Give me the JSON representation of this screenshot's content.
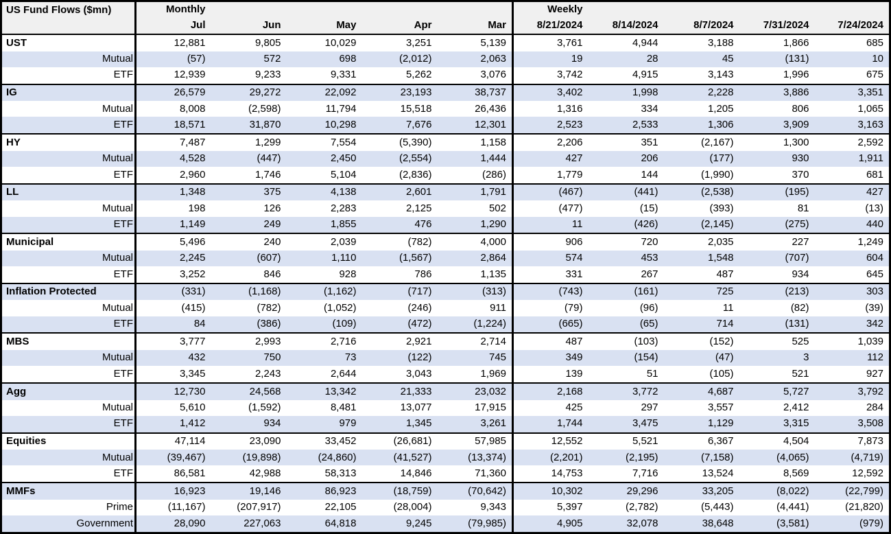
{
  "colors": {
    "stripe_row_bg": "#d9e1f2",
    "header_bg": "#f0f0f0",
    "border": "#000000",
    "text": "#000000",
    "row_bg": "#ffffff"
  },
  "chart_data": {
    "type": "table",
    "title": "US Fund Flows ($mn)",
    "header": {
      "monthly_label": "Monthly",
      "weekly_label": "Weekly",
      "monthly_columns": [
        "Jul",
        "Jun",
        "May",
        "Apr",
        "Mar"
      ],
      "weekly_columns": [
        "8/21/2024",
        "8/14/2024",
        "8/7/2024",
        "7/31/2024",
        "7/24/2024"
      ]
    },
    "groups": [
      {
        "rows": [
          {
            "label": "UST",
            "is_group_header": true,
            "monthly": [
              "12,881",
              "9,805",
              "10,029",
              "3,251",
              "5,139"
            ],
            "weekly": [
              "3,761",
              "4,944",
              "3,188",
              "1,866",
              "685"
            ]
          },
          {
            "label": "Mutual",
            "is_group_header": false,
            "monthly": [
              "(57)",
              "572",
              "698",
              "(2,012)",
              "2,063"
            ],
            "weekly": [
              "19",
              "28",
              "45",
              "(131)",
              "10"
            ]
          },
          {
            "label": "ETF",
            "is_group_header": false,
            "monthly": [
              "12,939",
              "9,233",
              "9,331",
              "5,262",
              "3,076"
            ],
            "weekly": [
              "3,742",
              "4,915",
              "3,143",
              "1,996",
              "675"
            ]
          }
        ]
      },
      {
        "rows": [
          {
            "label": "IG",
            "is_group_header": true,
            "monthly": [
              "26,579",
              "29,272",
              "22,092",
              "23,193",
              "38,737"
            ],
            "weekly": [
              "3,402",
              "1,998",
              "2,228",
              "3,886",
              "3,351"
            ]
          },
          {
            "label": "Mutual",
            "is_group_header": false,
            "monthly": [
              "8,008",
              "(2,598)",
              "11,794",
              "15,518",
              "26,436"
            ],
            "weekly": [
              "1,316",
              "334",
              "1,205",
              "806",
              "1,065"
            ]
          },
          {
            "label": "ETF",
            "is_group_header": false,
            "monthly": [
              "18,571",
              "31,870",
              "10,298",
              "7,676",
              "12,301"
            ],
            "weekly": [
              "2,523",
              "2,533",
              "1,306",
              "3,909",
              "3,163"
            ]
          }
        ]
      },
      {
        "rows": [
          {
            "label": "HY",
            "is_group_header": true,
            "monthly": [
              "7,487",
              "1,299",
              "7,554",
              "(5,390)",
              "1,158"
            ],
            "weekly": [
              "2,206",
              "351",
              "(2,167)",
              "1,300",
              "2,592"
            ]
          },
          {
            "label": "Mutual",
            "is_group_header": false,
            "monthly": [
              "4,528",
              "(447)",
              "2,450",
              "(2,554)",
              "1,444"
            ],
            "weekly": [
              "427",
              "206",
              "(177)",
              "930",
              "1,911"
            ]
          },
          {
            "label": "ETF",
            "is_group_header": false,
            "monthly": [
              "2,960",
              "1,746",
              "5,104",
              "(2,836)",
              "(286)"
            ],
            "weekly": [
              "1,779",
              "144",
              "(1,990)",
              "370",
              "681"
            ]
          }
        ]
      },
      {
        "rows": [
          {
            "label": "LL",
            "is_group_header": true,
            "monthly": [
              "1,348",
              "375",
              "4,138",
              "2,601",
              "1,791"
            ],
            "weekly": [
              "(467)",
              "(441)",
              "(2,538)",
              "(195)",
              "427"
            ]
          },
          {
            "label": "Mutual",
            "is_group_header": false,
            "monthly": [
              "198",
              "126",
              "2,283",
              "2,125",
              "502"
            ],
            "weekly": [
              "(477)",
              "(15)",
              "(393)",
              "81",
              "(13)"
            ]
          },
          {
            "label": "ETF",
            "is_group_header": false,
            "monthly": [
              "1,149",
              "249",
              "1,855",
              "476",
              "1,290"
            ],
            "weekly": [
              "11",
              "(426)",
              "(2,145)",
              "(275)",
              "440"
            ]
          }
        ]
      },
      {
        "rows": [
          {
            "label": "Municipal",
            "is_group_header": true,
            "monthly": [
              "5,496",
              "240",
              "2,039",
              "(782)",
              "4,000"
            ],
            "weekly": [
              "906",
              "720",
              "2,035",
              "227",
              "1,249"
            ]
          },
          {
            "label": "Mutual",
            "is_group_header": false,
            "monthly": [
              "2,245",
              "(607)",
              "1,110",
              "(1,567)",
              "2,864"
            ],
            "weekly": [
              "574",
              "453",
              "1,548",
              "(707)",
              "604"
            ]
          },
          {
            "label": "ETF",
            "is_group_header": false,
            "monthly": [
              "3,252",
              "846",
              "928",
              "786",
              "1,135"
            ],
            "weekly": [
              "331",
              "267",
              "487",
              "934",
              "645"
            ]
          }
        ]
      },
      {
        "rows": [
          {
            "label": "Inflation Protected",
            "is_group_header": true,
            "monthly": [
              "(331)",
              "(1,168)",
              "(1,162)",
              "(717)",
              "(313)"
            ],
            "weekly": [
              "(743)",
              "(161)",
              "725",
              "(213)",
              "303"
            ]
          },
          {
            "label": "Mutual",
            "is_group_header": false,
            "monthly": [
              "(415)",
              "(782)",
              "(1,052)",
              "(246)",
              "911"
            ],
            "weekly": [
              "(79)",
              "(96)",
              "11",
              "(82)",
              "(39)"
            ]
          },
          {
            "label": "ETF",
            "is_group_header": false,
            "monthly": [
              "84",
              "(386)",
              "(109)",
              "(472)",
              "(1,224)"
            ],
            "weekly": [
              "(665)",
              "(65)",
              "714",
              "(131)",
              "342"
            ]
          }
        ]
      },
      {
        "rows": [
          {
            "label": "MBS",
            "is_group_header": true,
            "monthly": [
              "3,777",
              "2,993",
              "2,716",
              "2,921",
              "2,714"
            ],
            "weekly": [
              "487",
              "(103)",
              "(152)",
              "525",
              "1,039"
            ]
          },
          {
            "label": "Mutual",
            "is_group_header": false,
            "monthly": [
              "432",
              "750",
              "73",
              "(122)",
              "745"
            ],
            "weekly": [
              "349",
              "(154)",
              "(47)",
              "3",
              "112"
            ]
          },
          {
            "label": "ETF",
            "is_group_header": false,
            "monthly": [
              "3,345",
              "2,243",
              "2,644",
              "3,043",
              "1,969"
            ],
            "weekly": [
              "139",
              "51",
              "(105)",
              "521",
              "927"
            ]
          }
        ]
      },
      {
        "rows": [
          {
            "label": "Agg",
            "is_group_header": true,
            "monthly": [
              "12,730",
              "24,568",
              "13,342",
              "21,333",
              "23,032"
            ],
            "weekly": [
              "2,168",
              "3,772",
              "4,687",
              "5,727",
              "3,792"
            ]
          },
          {
            "label": "Mutual",
            "is_group_header": false,
            "monthly": [
              "5,610",
              "(1,592)",
              "8,481",
              "13,077",
              "17,915"
            ],
            "weekly": [
              "425",
              "297",
              "3,557",
              "2,412",
              "284"
            ]
          },
          {
            "label": "ETF",
            "is_group_header": false,
            "monthly": [
              "1,412",
              "934",
              "979",
              "1,345",
              "3,261"
            ],
            "weekly": [
              "1,744",
              "3,475",
              "1,129",
              "3,315",
              "3,508"
            ]
          }
        ]
      },
      {
        "rows": [
          {
            "label": "Equities",
            "is_group_header": true,
            "monthly": [
              "47,114",
              "23,090",
              "33,452",
              "(26,681)",
              "57,985"
            ],
            "weekly": [
              "12,552",
              "5,521",
              "6,367",
              "4,504",
              "7,873"
            ]
          },
          {
            "label": "Mutual",
            "is_group_header": false,
            "monthly": [
              "(39,467)",
              "(19,898)",
              "(24,860)",
              "(41,527)",
              "(13,374)"
            ],
            "weekly": [
              "(2,201)",
              "(2,195)",
              "(7,158)",
              "(4,065)",
              "(4,719)"
            ]
          },
          {
            "label": "ETF",
            "is_group_header": false,
            "monthly": [
              "86,581",
              "42,988",
              "58,313",
              "14,846",
              "71,360"
            ],
            "weekly": [
              "14,753",
              "7,716",
              "13,524",
              "8,569",
              "12,592"
            ]
          }
        ]
      },
      {
        "rows": [
          {
            "label": "MMFs",
            "is_group_header": true,
            "monthly": [
              "16,923",
              "19,146",
              "86,923",
              "(18,759)",
              "(70,642)"
            ],
            "weekly": [
              "10,302",
              "29,296",
              "33,205",
              "(8,022)",
              "(22,799)"
            ]
          },
          {
            "label": "Prime",
            "is_group_header": false,
            "monthly": [
              "(11,167)",
              "(207,917)",
              "22,105",
              "(28,004)",
              "9,343"
            ],
            "weekly": [
              "5,397",
              "(2,782)",
              "(5,443)",
              "(4,441)",
              "(21,820)"
            ]
          },
          {
            "label": "Government",
            "is_group_header": false,
            "monthly": [
              "28,090",
              "227,063",
              "64,818",
              "9,245",
              "(79,985)"
            ],
            "weekly": [
              "4,905",
              "32,078",
              "38,648",
              "(3,581)",
              "(979)"
            ]
          }
        ]
      }
    ]
  }
}
